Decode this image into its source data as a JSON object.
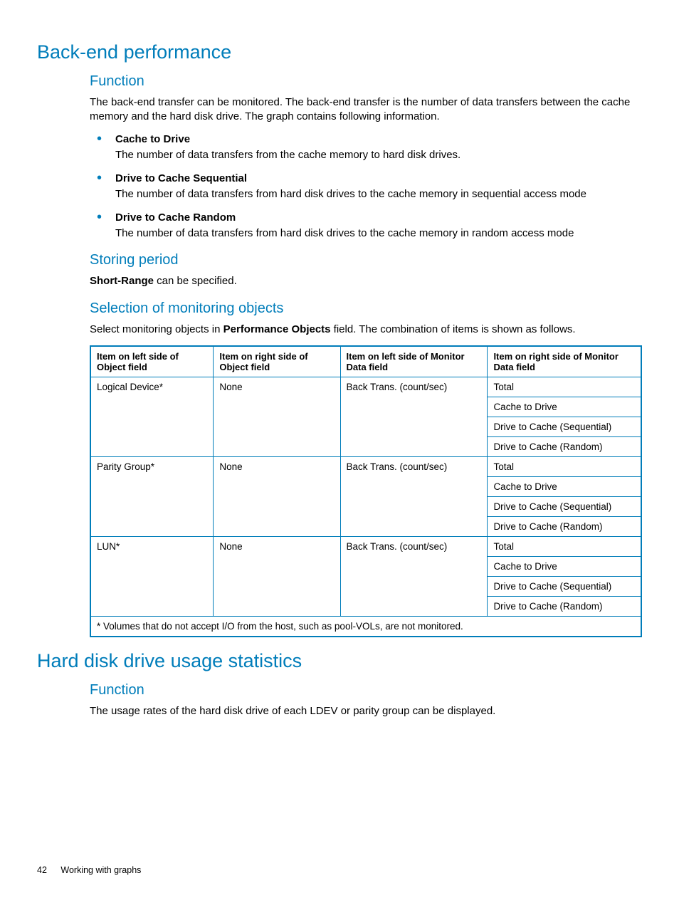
{
  "colors": {
    "accent": "#007dba",
    "text": "#000000",
    "background": "#ffffff"
  },
  "section1": {
    "title": "Back-end performance",
    "function": {
      "heading": "Function",
      "intro": "The back-end transfer can be monitored. The back-end transfer is the number of data transfers between the cache memory and the hard disk drive. The graph contains following information.",
      "items": [
        {
          "title": "Cache to Drive",
          "body": "The number of data transfers from the cache memory to hard disk drives."
        },
        {
          "title": "Drive to Cache Sequential",
          "body": "The number of data transfers from hard disk drives to the cache memory in sequential access mode"
        },
        {
          "title": "Drive to Cache Random",
          "body": "The number of data transfers from hard disk drives to the cache memory in random access mode"
        }
      ]
    },
    "storing": {
      "heading": "Storing period",
      "bold": "Short-Range",
      "rest": " can be specified."
    },
    "selection": {
      "heading": "Selection of monitoring objects",
      "intro_pre": "Select monitoring objects in ",
      "intro_bold": "Performance Objects",
      "intro_post": " field. The combination of items is shown as follows."
    }
  },
  "table": {
    "type": "table",
    "headers": [
      "Item on left side of Object field",
      "Item on right side of Object field",
      "Item on left side of Monitor Data field",
      "Item on right side of Monitor Data field"
    ],
    "groups": [
      {
        "col1": "Logical Device*",
        "col2": "None",
        "col3": "Back Trans. (count/sec)",
        "col4": [
          "Total",
          "Cache to Drive",
          "Drive to Cache (Sequential)",
          "Drive to Cache (Random)"
        ]
      },
      {
        "col1": "Parity Group*",
        "col2": "None",
        "col3": "Back Trans. (count/sec)",
        "col4": [
          "Total",
          "Cache to Drive",
          "Drive to Cache (Sequential)",
          "Drive to Cache (Random)"
        ]
      },
      {
        "col1": "LUN*",
        "col2": "None",
        "col3": "Back Trans. (count/sec)",
        "col4": [
          "Total",
          "Cache to Drive",
          "Drive to Cache (Sequential)",
          "Drive to Cache (Random)"
        ]
      }
    ],
    "footnote": "* Volumes that do not accept I/O from the host, such as pool-VOLs, are not monitored.",
    "border_color": "#007dba",
    "header_fontsize": 13,
    "cell_fontsize": 13.5
  },
  "section2": {
    "title": "Hard disk drive usage statistics",
    "function": {
      "heading": "Function",
      "body": "The usage rates of the hard disk drive of each LDEV or parity group can be displayed."
    }
  },
  "footer": {
    "page_number": "42",
    "chapter": "Working with graphs"
  }
}
